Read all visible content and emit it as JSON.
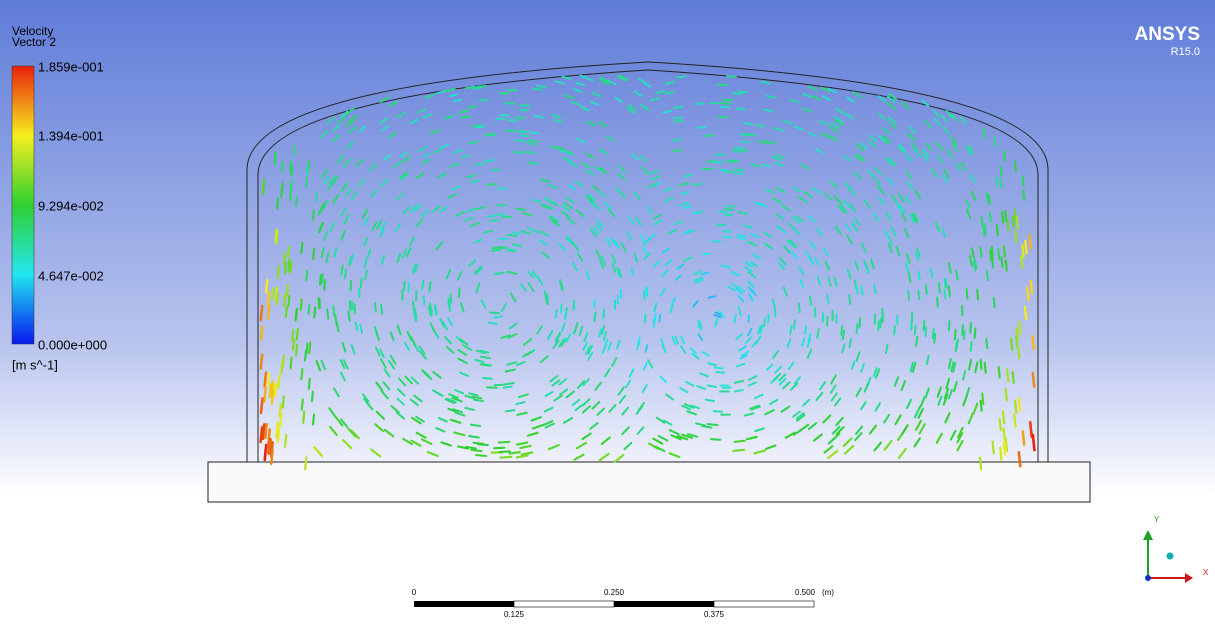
{
  "legend": {
    "title": [
      "Velocity",
      "Vector 2"
    ],
    "labels": [
      "1.859e-001",
      "1.394e-001",
      "9.294e-002",
      "4.647e-002",
      "0.000e+000"
    ],
    "unit": "[m s^-1]"
  },
  "logo": {
    "name": "ANSYS",
    "version": "R15.0"
  },
  "scale_bar": {
    "top_labels": [
      "0",
      "0.250",
      "0.500"
    ],
    "unit": "(m)",
    "bottom_labels": [
      "0.125",
      "0.375"
    ]
  },
  "axes": {
    "y": "Y",
    "x": "X"
  }
}
